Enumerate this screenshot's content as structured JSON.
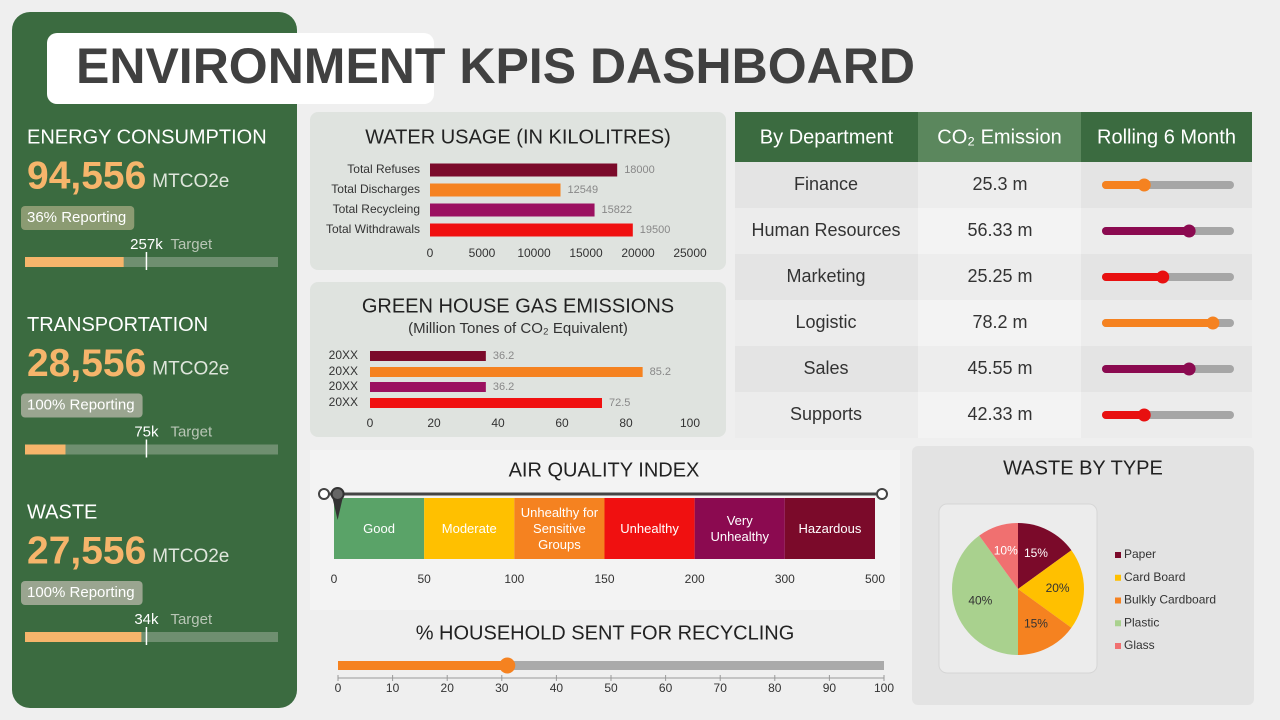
{
  "header": {
    "title": "ENVIRONMENT KPIS DASHBOARD"
  },
  "kpis": [
    {
      "label": "ENERGY CONSUMPTION",
      "value": "94,556",
      "unit": "MTCO2e",
      "reporting": "36% Reporting",
      "target_label": "257k",
      "target_text": "Target",
      "progress": 39,
      "target": 48,
      "xlim": [
        0,
        100
      ]
    },
    {
      "label": "TRANSPORTATION",
      "value": "28,556",
      "unit": "MTCO2e",
      "reporting": "100% Reporting",
      "target_label": "75k",
      "target_text": "Target",
      "progress": 16,
      "target": 48,
      "xlim": [
        0,
        100
      ]
    },
    {
      "label": "WASTE",
      "value": "27,556",
      "unit": "MTCO2e",
      "reporting": "100% Reporting",
      "target_label": "34k",
      "target_text": "Target",
      "progress": 46,
      "target": 48,
      "xlim": [
        0,
        100
      ]
    }
  ],
  "table": {
    "columns": [
      "By Department",
      "CO₂ Emission",
      "Rolling 6 Month"
    ],
    "rows": [
      [
        "Finance",
        "25.3 m"
      ],
      [
        "Human Resources",
        "56.33 m"
      ],
      [
        "Marketing",
        "25.25 m"
      ],
      [
        "Logistic",
        "78.2 m"
      ],
      [
        "Sales",
        "45.55 m"
      ],
      [
        "Supports",
        "42.33 m"
      ]
    ],
    "rolling": {
      "values": [
        32,
        66,
        46,
        84,
        66,
        32
      ],
      "colors": [
        "#f58220",
        "#8b0a50",
        "#e81010",
        "#f58220",
        "#8b0a50",
        "#e81010"
      ],
      "xlim": [
        0,
        100
      ]
    }
  },
  "chart_data": [
    {
      "type": "bar",
      "title": "WATER USAGE  (IN KILOLITRES)",
      "categories": [
        "Total Refuses",
        "Total Discharges",
        "Total Recycleing",
        "Total Withdrawals"
      ],
      "values": [
        18000,
        12549,
        15822,
        19500
      ],
      "colors": [
        "#7b0a2a",
        "#f58220",
        "#9b1060",
        "#f01010"
      ],
      "xlim": [
        0,
        25000
      ],
      "xticks": [
        0,
        5000,
        10000,
        15000,
        20000,
        25000
      ]
    },
    {
      "type": "bar",
      "title": "GREEN HOUSE GAS EMISSIONS",
      "subtitle": "(Million Tones of CO₂ Equivalent)",
      "categories": [
        "20XX",
        "20XX",
        "20XX",
        "20XX"
      ],
      "values": [
        36.2,
        85.2,
        36.2,
        72.5
      ],
      "colors": [
        "#7b0a2a",
        "#f58220",
        "#9b1060",
        "#f01010"
      ],
      "xlim": [
        0,
        100
      ],
      "xticks": [
        0,
        20,
        40,
        60,
        80,
        100
      ]
    },
    {
      "type": "scale",
      "title": "AIR QUALITY  INDEX",
      "categories": [
        "Good",
        "Moderate",
        "Unhealthy for Sensitive Groups",
        "Unhealthy",
        "Very Unhealthy",
        "Hazardous"
      ],
      "bins": [
        0,
        50,
        100,
        150,
        200,
        300,
        500
      ],
      "colors": [
        "#5aa368",
        "#ffc000",
        "#f58220",
        "#f01010",
        "#8b0a50",
        "#7b0a2a"
      ],
      "value": 2
    },
    {
      "type": "slider",
      "title": "% HOUSEHOLD  SENT FOR RECYCLING",
      "value": 31,
      "color": "#f58220",
      "xlim": [
        0,
        100
      ],
      "xticks": [
        0,
        10,
        20,
        30,
        40,
        50,
        60,
        70,
        80,
        90,
        100
      ]
    },
    {
      "type": "pie",
      "title": "WASTE BY TYPE",
      "categories": [
        "Paper",
        "Card Board",
        "Bulkly Cardboard",
        "Plastic",
        "Glass"
      ],
      "values": [
        15,
        20,
        15,
        40,
        10
      ],
      "value_labels": [
        "15%",
        "20%",
        "15%",
        "40%",
        "10%"
      ],
      "colors": [
        "#7b0a2a",
        "#ffc000",
        "#f58220",
        "#a9d18e",
        "#f07070"
      ],
      "legend": "right"
    }
  ]
}
